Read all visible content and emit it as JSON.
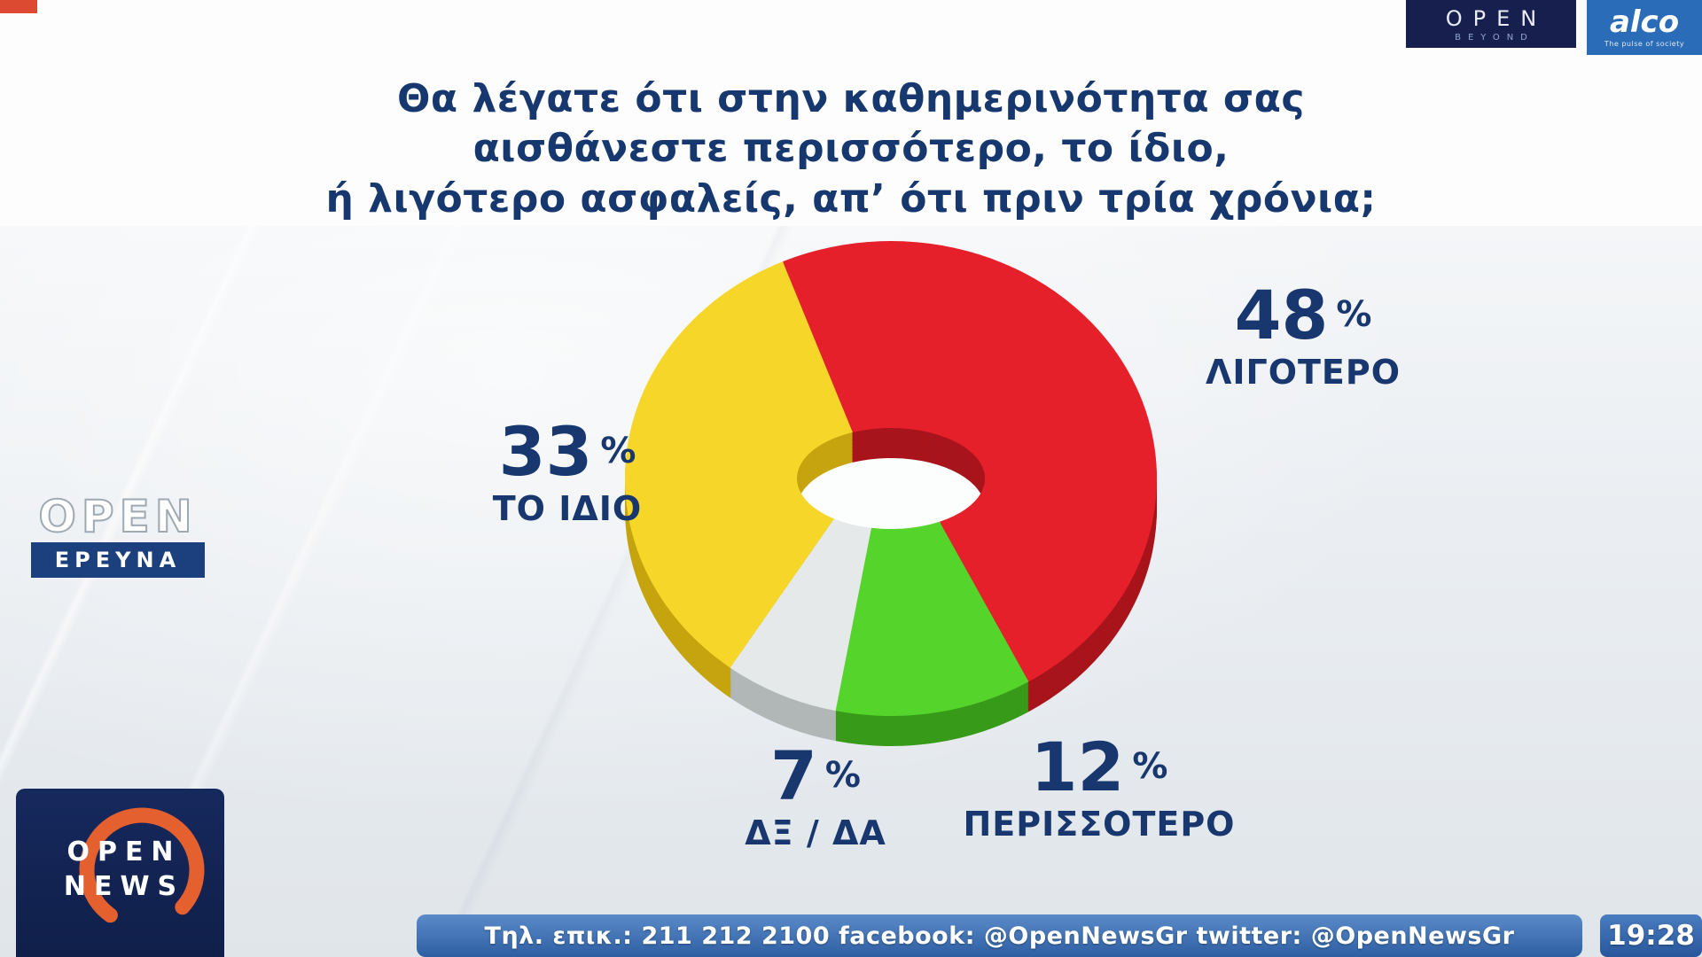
{
  "header": {
    "title_lines": [
      "Θα λέγατε ότι στην καθημερινότητα σας",
      "αισθάνεστε περισσότερο, το ίδιο,",
      "ή λιγότερο ασφαλείς, απ’ ότι πριν τρία χρόνια;"
    ]
  },
  "branding": {
    "open_beyond": {
      "line1": "OPEN",
      "line2": "BEYOND"
    },
    "alco": {
      "name": "alco",
      "tagline": "The pulse of society"
    },
    "open_ereyna": {
      "line1": "OPEN",
      "line2": "ΕΡΕΥΝΑ"
    },
    "open_news": {
      "line1": "OPEN",
      "line2": "NEWS"
    }
  },
  "footer": {
    "contact": "Τηλ. επικ.: 211 212 2100 facebook: @OpenNewsGr twitter: @OpenNewsGr",
    "time": "19:28"
  },
  "chart_data": {
    "type": "pie",
    "donut": true,
    "title": "Θα λέγατε ότι στην καθημερινότητα σας αισθάνεστε περισσότερο, το ίδιο, ή λιγότερο ασφαλείς, απ’ ότι πριν τρία χρόνια;",
    "percent_sign": "%",
    "start_angle_deg": -24,
    "legend_position": "around",
    "slices": [
      {
        "label": "ΛΙΓΟΤΕΡΟ",
        "value": 48,
        "color": "#e5202a",
        "dark": "#a8141b"
      },
      {
        "label": "ΠΕΡΙΣΣΟΤΕΡΟ",
        "value": 12,
        "color": "#55d42c",
        "dark": "#379a18"
      },
      {
        "label": "ΔΞ / ΔΑ",
        "value": 7,
        "color": "#e6e9e9",
        "dark": "#b1b7b7"
      },
      {
        "label": "ΤΟ ΙΔΙΟ",
        "value": 33,
        "color": "#f6d729",
        "dark": "#c5a40f"
      }
    ],
    "text_color": "#17376e"
  }
}
